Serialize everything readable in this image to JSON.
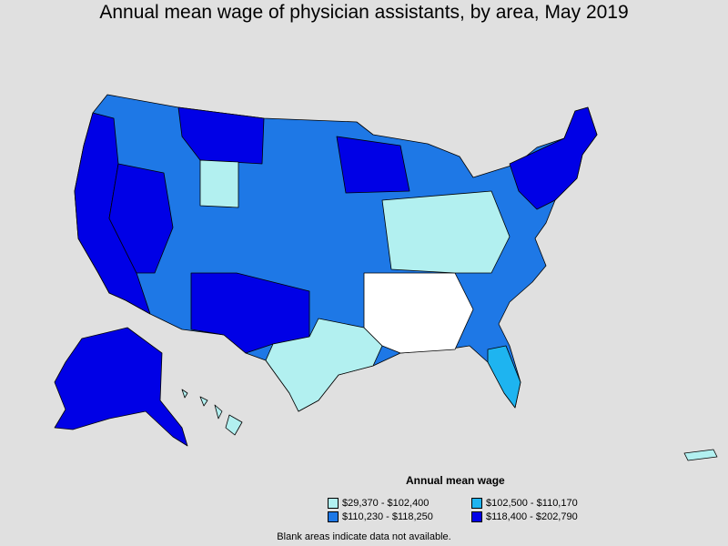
{
  "title": "Annual mean wage of physician assistants, by area, May 2019",
  "legend": {
    "title": "Annual mean wage",
    "items": [
      {
        "label": "$29,370 - $102,400",
        "color": "#b2f0f0"
      },
      {
        "label": "$102,500 - $110,170",
        "color": "#1eb4f0"
      },
      {
        "label": "$110,230 - $118,250",
        "color": "#1e78e6"
      },
      {
        "label": "$118,400 - $202,790",
        "color": "#0000e6"
      }
    ]
  },
  "note": "Blank areas indicate data not available."
}
